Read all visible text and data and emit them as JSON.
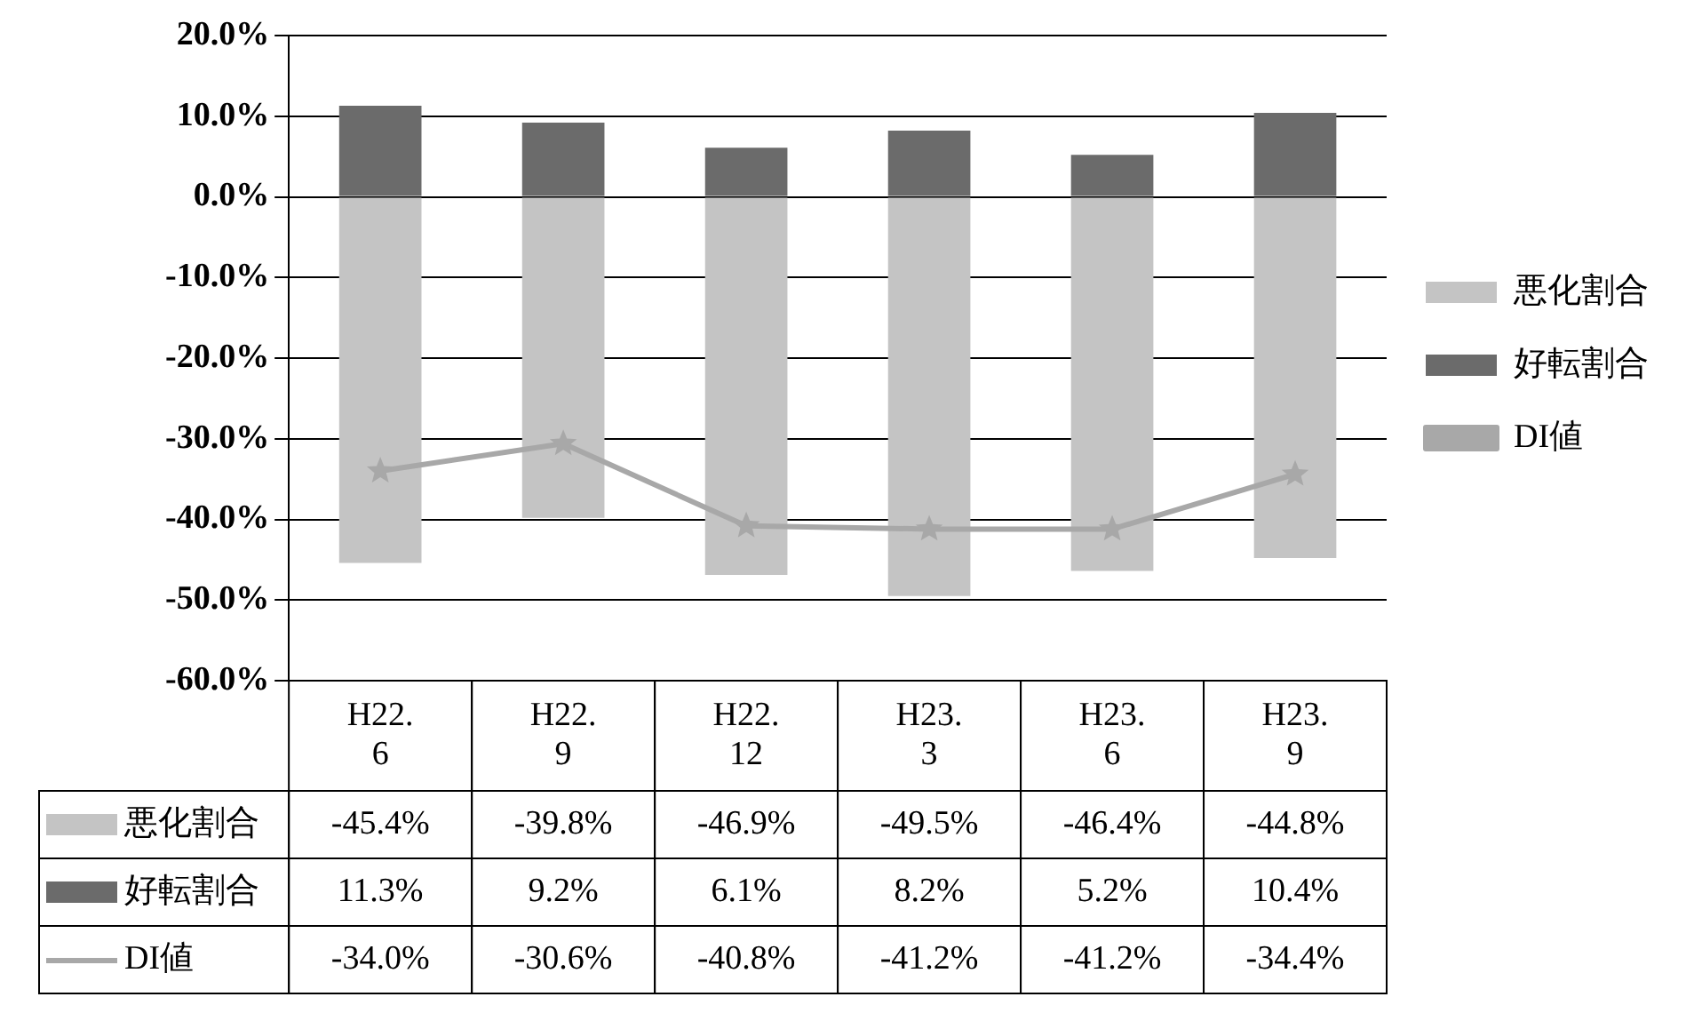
{
  "chart_data": {
    "type": "bar",
    "stacked": true,
    "categories": [
      "H22.6",
      "H22.9",
      "H22.12",
      "H23.3",
      "H23.6",
      "H23.9"
    ],
    "series": [
      {
        "name": "悪化割合",
        "color": "#c4c4c4",
        "values": [
          -45.4,
          -39.8,
          -46.9,
          -49.5,
          -46.4,
          -44.8
        ],
        "value_labels": [
          "-45.4%",
          "-39.8%",
          "-46.9%",
          "-49.5%",
          "-46.4%",
          "-44.8%"
        ]
      },
      {
        "name": "好転割合",
        "color": "#6b6b6b",
        "values": [
          11.3,
          9.2,
          6.1,
          8.2,
          5.2,
          10.4
        ],
        "value_labels": [
          "11.3%",
          "9.2%",
          "6.1%",
          "8.2%",
          "5.2%",
          "10.4%"
        ]
      },
      {
        "name": "DI値",
        "type": "line",
        "color": "#a8a8a8",
        "marker": "star",
        "values": [
          -34.0,
          -30.6,
          -40.8,
          -41.2,
          -41.2,
          -34.4
        ],
        "value_labels": [
          "-34.0%",
          "-30.6%",
          "-40.8%",
          "-41.2%",
          "-41.2%",
          "-34.4%"
        ]
      }
    ],
    "ylim": [
      -60,
      20
    ],
    "yticks": [
      {
        "value": -60,
        "label": "-60.0%"
      },
      {
        "value": -50,
        "label": "-50.0%"
      },
      {
        "value": -40,
        "label": "-40.0%"
      },
      {
        "value": -30,
        "label": "-30.0%"
      },
      {
        "value": -20,
        "label": "-20.0%"
      },
      {
        "value": -10,
        "label": "-10.0%"
      },
      {
        "value": 0,
        "label": "0.0%"
      },
      {
        "value": 10,
        "label": "10.0%"
      },
      {
        "value": 20,
        "label": "20.0%"
      }
    ],
    "grid": "y",
    "legend": "right"
  }
}
